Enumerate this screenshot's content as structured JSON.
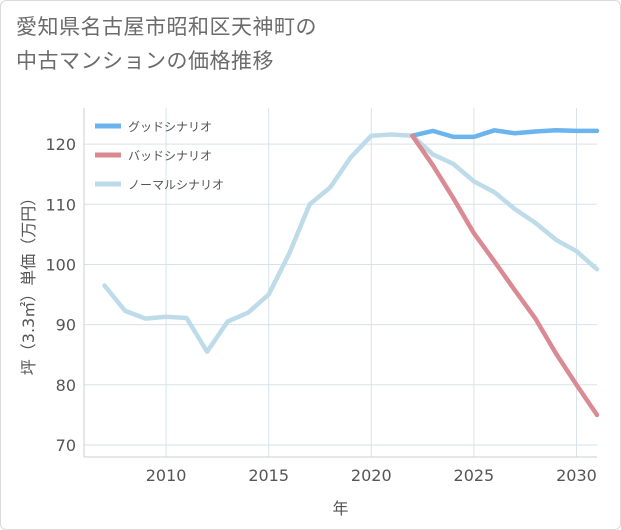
{
  "title_line1": "愛知県名古屋市昭和区天神町の",
  "title_line2": "中古マンションの価格推移",
  "chart_data": {
    "type": "line",
    "xlabel": "年",
    "ylabel": "坪（3.3㎡）単価（万円）",
    "xlim": [
      2006,
      2031
    ],
    "ylim": [
      68,
      126
    ],
    "xticks": [
      2010,
      2015,
      2020,
      2025,
      2030
    ],
    "yticks": [
      70,
      80,
      90,
      100,
      110,
      120
    ],
    "legend_position": "top-left",
    "series": [
      {
        "name": "グッドシナリオ",
        "color": "#6cb4ee",
        "x": [
          2022,
          2023,
          2024,
          2025,
          2026,
          2027,
          2028,
          2029,
          2030,
          2031
        ],
        "y": [
          121.4,
          122.2,
          121.2,
          121.2,
          122.3,
          121.8,
          122.1,
          122.3,
          122.2,
          122.2
        ]
      },
      {
        "name": "バッドシナリオ",
        "color": "#d98a92",
        "x": [
          2022,
          2023,
          2024,
          2025,
          2026,
          2027,
          2028,
          2029,
          2030,
          2031
        ],
        "y": [
          121.4,
          116.5,
          111.0,
          105.2,
          100.5,
          95.7,
          91.0,
          85.2,
          80.0,
          75.0
        ]
      },
      {
        "name": "ノーマルシナリオ",
        "color": "#bedbe9",
        "x": [
          2007,
          2008,
          2009,
          2010,
          2011,
          2012,
          2013,
          2014,
          2015,
          2016,
          2017,
          2018,
          2019,
          2020,
          2021,
          2022,
          2023,
          2024,
          2025,
          2026,
          2027,
          2028,
          2029,
          2030,
          2031
        ],
        "y": [
          96.5,
          92.3,
          91.0,
          91.3,
          91.1,
          85.5,
          90.5,
          92.0,
          95.0,
          101.8,
          110.0,
          112.8,
          117.8,
          121.4,
          121.6,
          121.4,
          118.3,
          116.7,
          113.8,
          112.0,
          109.2,
          106.9,
          104.1,
          102.2,
          99.2
        ]
      }
    ]
  }
}
